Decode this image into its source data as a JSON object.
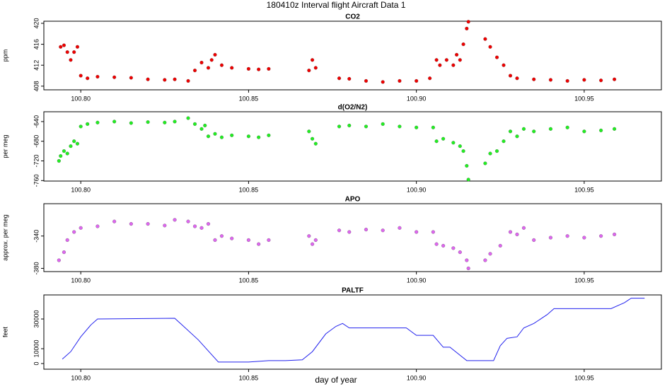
{
  "title": "180410z   Interval flight Aircraft Data 1",
  "xlabel": "day of year",
  "chart_data": [
    {
      "type": "scatter",
      "title": "CO2",
      "ylabel": "ppm",
      "color": "#ee0000",
      "xlim": [
        100.789,
        100.973
      ],
      "ylim": [
        407.3,
        420.4
      ],
      "xticks": [
        {
          "value": 100.8,
          "label": "100.80"
        },
        100.85,
        {
          "value": 100.9,
          "label": "100.90"
        },
        100.95
      ],
      "yticks": [
        408,
        412,
        416,
        420
      ],
      "x": [
        100.794,
        100.795,
        100.796,
        100.797,
        100.798,
        100.799,
        100.8,
        100.802,
        100.805,
        100.81,
        100.815,
        100.82,
        100.825,
        100.828,
        100.832,
        100.834,
        100.836,
        100.838,
        100.839,
        100.84,
        100.842,
        100.845,
        100.85,
        100.853,
        100.856,
        100.868,
        100.869,
        100.87,
        100.877,
        100.88,
        100.885,
        100.89,
        100.895,
        100.9,
        100.904,
        100.906,
        100.907,
        100.909,
        100.911,
        100.912,
        100.913,
        100.914,
        100.915,
        100.9155,
        100.9205,
        100.922,
        100.924,
        100.926,
        100.928,
        100.93,
        100.935,
        100.94,
        100.945,
        100.95,
        100.955,
        100.959
      ],
      "values": [
        415.5,
        415.8,
        414.5,
        413,
        414.5,
        415.5,
        410,
        409.5,
        409.8,
        409.7,
        409.6,
        409.3,
        409.2,
        409.3,
        409,
        411,
        412.5,
        411.5,
        413,
        414,
        412,
        411.5,
        411.3,
        411.2,
        411.3,
        411,
        413,
        411.5,
        409.5,
        409.4,
        409,
        408.8,
        409,
        409,
        409.5,
        413,
        412,
        413,
        412,
        414,
        413,
        416,
        419,
        420.3,
        417,
        415.5,
        413.5,
        412,
        410,
        409.5,
        409.3,
        409.2,
        409,
        409.2,
        409.1,
        409.3
      ]
    },
    {
      "type": "scatter",
      "title": "d(O2/N2)",
      "ylabel": "per meg",
      "color": "#22ee22",
      "xlim": [
        100.789,
        100.973
      ],
      "ylim": [
        -761,
        -620
      ],
      "xticks": [
        {
          "value": 100.8,
          "label": "100.80"
        },
        100.85,
        {
          "value": 100.9,
          "label": "100.90"
        },
        100.95
      ],
      "yticks": [
        -760,
        -720,
        -680,
        -640
      ],
      "x": [
        100.7935,
        100.794,
        100.795,
        100.796,
        100.797,
        100.798,
        100.799,
        100.8,
        100.802,
        100.805,
        100.81,
        100.815,
        100.82,
        100.825,
        100.828,
        100.832,
        100.834,
        100.836,
        100.837,
        100.838,
        100.84,
        100.842,
        100.845,
        100.85,
        100.853,
        100.856,
        100.868,
        100.869,
        100.87,
        100.877,
        100.88,
        100.885,
        100.89,
        100.895,
        100.9,
        100.905,
        100.906,
        100.908,
        100.911,
        100.913,
        100.914,
        100.915,
        100.9155,
        100.9205,
        100.922,
        100.924,
        100.926,
        100.928,
        100.93,
        100.932,
        100.935,
        100.94,
        100.945,
        100.95,
        100.955,
        100.959
      ],
      "values": [
        -720,
        -710,
        -700,
        -705,
        -690,
        -680,
        -685,
        -650,
        -645,
        -642,
        -640,
        -643,
        -641,
        -642,
        -640,
        -633,
        -645,
        -655,
        -648,
        -670,
        -665,
        -672,
        -668,
        -670,
        -672,
        -668,
        -660,
        -675,
        -685,
        -650,
        -648,
        -650,
        -645,
        -650,
        -652,
        -652,
        -680,
        -675,
        -683,
        -690,
        -700,
        -730,
        -758,
        -725,
        -705,
        -700,
        -680,
        -660,
        -670,
        -655,
        -660,
        -655,
        -652,
        -660,
        -658,
        -655
      ]
    },
    {
      "type": "scatter",
      "title": "APO",
      "ylabel": "approx. per meg",
      "color": "#dd66ee",
      "xlim": [
        100.789,
        100.973
      ],
      "ylim": [
        -384,
        -300
      ],
      "xticks": [
        {
          "value": 100.8,
          "label": "100.80"
        },
        100.85,
        {
          "value": 100.9,
          "label": "100.90"
        },
        100.95
      ],
      "yticks": [
        -380,
        -340
      ],
      "x": [
        100.7935,
        100.795,
        100.796,
        100.798,
        100.8,
        100.805,
        100.81,
        100.815,
        100.82,
        100.825,
        100.828,
        100.832,
        100.834,
        100.836,
        100.838,
        100.84,
        100.842,
        100.845,
        100.85,
        100.853,
        100.856,
        100.868,
        100.869,
        100.87,
        100.877,
        100.88,
        100.885,
        100.89,
        100.895,
        100.9,
        100.905,
        100.906,
        100.908,
        100.911,
        100.913,
        100.915,
        100.9155,
        100.9205,
        100.922,
        100.925,
        100.928,
        100.93,
        100.932,
        100.935,
        100.94,
        100.945,
        100.95,
        100.955,
        100.959
      ],
      "values": [
        -370,
        -360,
        -345,
        -335,
        -330,
        -328,
        -322,
        -325,
        -325,
        -327,
        -320,
        -322,
        -328,
        -330,
        -325,
        -345,
        -340,
        -343,
        -345,
        -350,
        -345,
        -340,
        -350,
        -345,
        -333,
        -335,
        -332,
        -333,
        -330,
        -335,
        -335,
        -350,
        -352,
        -355,
        -360,
        -370,
        -380,
        -370,
        -362,
        -352,
        -335,
        -338,
        -330,
        -345,
        -342,
        -340,
        -342,
        -340,
        -338
      ]
    },
    {
      "type": "line",
      "title": "PALTF",
      "ylabel": "feet",
      "color": "#2222ee",
      "xlim": [
        100.789,
        100.973
      ],
      "ylim": [
        -3800,
        46200
      ],
      "xticks": [
        {
          "value": 100.8,
          "label": "100.80"
        },
        100.85,
        {
          "value": 100.9,
          "label": "100.90"
        },
        100.95
      ],
      "yticks": [
        0,
        10000,
        30000
      ],
      "x": [
        100.7945,
        100.797,
        100.8,
        100.803,
        100.805,
        100.828,
        100.835,
        100.841,
        100.85,
        100.856,
        100.861,
        100.866,
        100.869,
        100.873,
        100.876,
        100.878,
        100.88,
        100.889,
        100.897,
        100.9,
        100.905,
        100.908,
        100.91,
        100.915,
        100.923,
        100.925,
        100.927,
        100.93,
        100.932,
        100.935,
        100.939,
        100.941,
        100.958,
        100.962,
        100.964,
        100.968
      ],
      "values": [
        3000,
        8000,
        18000,
        26000,
        30000,
        30500,
        16000,
        1000,
        1000,
        2000,
        2000,
        2500,
        8000,
        20000,
        25000,
        27000,
        24000,
        24000,
        24000,
        19000,
        19000,
        11000,
        11000,
        2000,
        2000,
        12000,
        17000,
        18000,
        24000,
        27000,
        33000,
        37000,
        37000,
        41000,
        44000,
        44000
      ]
    }
  ]
}
